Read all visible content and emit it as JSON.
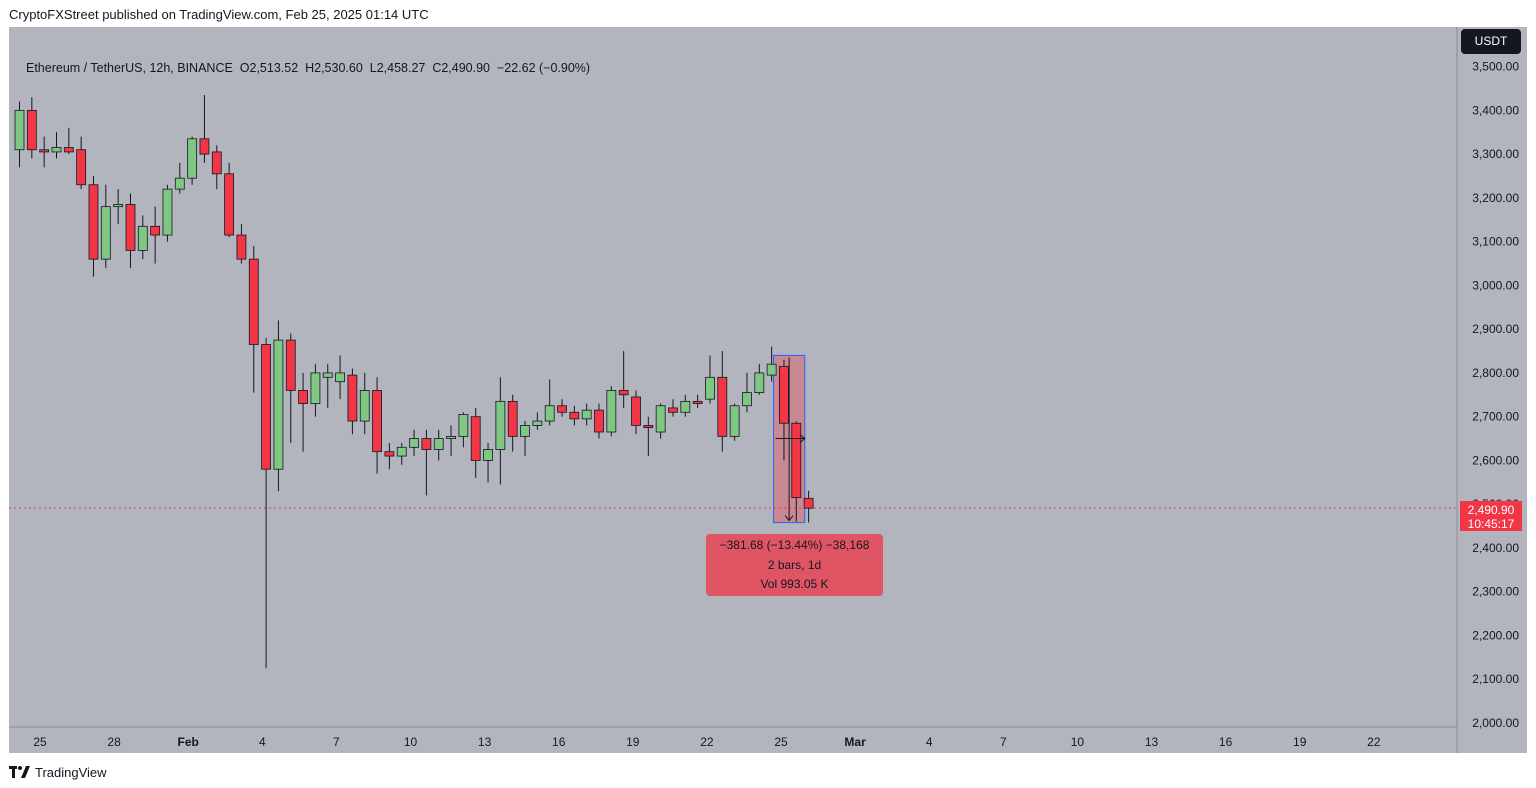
{
  "header": {
    "published_text": "CryptoFXStreet published on TradingView.com, Feb 25, 2025 01:14 UTC"
  },
  "legend": {
    "symbol_info": "Ethereum / TetherUS, 12h, BINANCE",
    "open": "O2,513.52",
    "high": "H2,530.60",
    "low": "L2,458.27",
    "close": "C2,490.90",
    "change": "−22.62 (−0.90%)"
  },
  "currency": "USDT",
  "last_price": {
    "price": "2,490.90",
    "countdown": "10:45:17"
  },
  "measure": {
    "change_line": "−381.68 (−13.44%) −38,168",
    "bars_line": "2 bars, 1d",
    "volume_line": "Vol 993.05 K"
  },
  "footer": {
    "brand": "TradingView"
  },
  "colors": {
    "background": "#b2b5be",
    "up": "#81c784",
    "down": "#f23645",
    "price_label": "#f23645",
    "measure_fill": "#e05563"
  },
  "chart_data": {
    "type": "candlestick",
    "title": "Ethereum / TetherUS, 12h, BINANCE",
    "x_tick_labels": [
      "25",
      "28",
      "Feb",
      "4",
      "7",
      "10",
      "13",
      "16",
      "19",
      "22",
      "25",
      "Mar",
      "4",
      "7",
      "10",
      "13",
      "16",
      "19",
      "22"
    ],
    "y_tick_labels": [
      "2,000.00",
      "2,100.00",
      "2,200.00",
      "2,300.00",
      "2,400.00",
      "2,500.00",
      "2,600.00",
      "2,700.00",
      "2,800.00",
      "2,900.00",
      "3,000.00",
      "3,100.00",
      "3,200.00",
      "3,300.00",
      "3,400.00",
      "3,500.00"
    ],
    "ylim": [
      2000,
      3550
    ],
    "candles": [
      {
        "o": 3310,
        "h": 3420,
        "l": 3270,
        "c": 3400
      },
      {
        "o": 3400,
        "h": 3430,
        "l": 3290,
        "c": 3310
      },
      {
        "o": 3310,
        "h": 3340,
        "l": 3270,
        "c": 3305
      },
      {
        "o": 3305,
        "h": 3350,
        "l": 3290,
        "c": 3315
      },
      {
        "o": 3315,
        "h": 3360,
        "l": 3300,
        "c": 3305
      },
      {
        "o": 3310,
        "h": 3340,
        "l": 3220,
        "c": 3230
      },
      {
        "o": 3230,
        "h": 3250,
        "l": 3020,
        "c": 3060
      },
      {
        "o": 3060,
        "h": 3230,
        "l": 3040,
        "c": 3180
      },
      {
        "o": 3180,
        "h": 3220,
        "l": 3140,
        "c": 3185
      },
      {
        "o": 3185,
        "h": 3210,
        "l": 3040,
        "c": 3080
      },
      {
        "o": 3080,
        "h": 3160,
        "l": 3060,
        "c": 3135
      },
      {
        "o": 3135,
        "h": 3180,
        "l": 3050,
        "c": 3115
      },
      {
        "o": 3115,
        "h": 3230,
        "l": 3100,
        "c": 3220
      },
      {
        "o": 3220,
        "h": 3280,
        "l": 3210,
        "c": 3245
      },
      {
        "o": 3245,
        "h": 3340,
        "l": 3230,
        "c": 3335
      },
      {
        "o": 3335,
        "h": 3435,
        "l": 3280,
        "c": 3300
      },
      {
        "o": 3305,
        "h": 3320,
        "l": 3220,
        "c": 3255
      },
      {
        "o": 3255,
        "h": 3280,
        "l": 3110,
        "c": 3115
      },
      {
        "o": 3115,
        "h": 3140,
        "l": 3050,
        "c": 3060
      },
      {
        "o": 3060,
        "h": 3090,
        "l": 2755,
        "c": 2865
      },
      {
        "o": 2865,
        "h": 2880,
        "l": 2125,
        "c": 2580
      },
      {
        "o": 2580,
        "h": 2920,
        "l": 2530,
        "c": 2875
      },
      {
        "o": 2875,
        "h": 2890,
        "l": 2640,
        "c": 2760
      },
      {
        "o": 2760,
        "h": 2800,
        "l": 2620,
        "c": 2730
      },
      {
        "o": 2730,
        "h": 2820,
        "l": 2700,
        "c": 2800
      },
      {
        "o": 2790,
        "h": 2820,
        "l": 2720,
        "c": 2800
      },
      {
        "o": 2780,
        "h": 2840,
        "l": 2740,
        "c": 2800
      },
      {
        "o": 2795,
        "h": 2810,
        "l": 2660,
        "c": 2690
      },
      {
        "o": 2690,
        "h": 2800,
        "l": 2660,
        "c": 2760
      },
      {
        "o": 2760,
        "h": 2790,
        "l": 2570,
        "c": 2620
      },
      {
        "o": 2620,
        "h": 2640,
        "l": 2580,
        "c": 2610
      },
      {
        "o": 2610,
        "h": 2640,
        "l": 2590,
        "c": 2630
      },
      {
        "o": 2630,
        "h": 2670,
        "l": 2610,
        "c": 2650
      },
      {
        "o": 2650,
        "h": 2670,
        "l": 2520,
        "c": 2625
      },
      {
        "o": 2625,
        "h": 2670,
        "l": 2600,
        "c": 2650
      },
      {
        "o": 2650,
        "h": 2680,
        "l": 2610,
        "c": 2655
      },
      {
        "o": 2655,
        "h": 2710,
        "l": 2630,
        "c": 2705
      },
      {
        "o": 2700,
        "h": 2720,
        "l": 2560,
        "c": 2600
      },
      {
        "o": 2600,
        "h": 2640,
        "l": 2550,
        "c": 2625
      },
      {
        "o": 2625,
        "h": 2790,
        "l": 2545,
        "c": 2735
      },
      {
        "o": 2735,
        "h": 2750,
        "l": 2620,
        "c": 2655
      },
      {
        "o": 2655,
        "h": 2690,
        "l": 2610,
        "c": 2680
      },
      {
        "o": 2680,
        "h": 2710,
        "l": 2670,
        "c": 2690
      },
      {
        "o": 2690,
        "h": 2785,
        "l": 2680,
        "c": 2725
      },
      {
        "o": 2725,
        "h": 2740,
        "l": 2700,
        "c": 2710
      },
      {
        "o": 2710,
        "h": 2725,
        "l": 2680,
        "c": 2695
      },
      {
        "o": 2695,
        "h": 2730,
        "l": 2680,
        "c": 2715
      },
      {
        "o": 2715,
        "h": 2730,
        "l": 2650,
        "c": 2665
      },
      {
        "o": 2665,
        "h": 2770,
        "l": 2655,
        "c": 2760
      },
      {
        "o": 2760,
        "h": 2850,
        "l": 2720,
        "c": 2750
      },
      {
        "o": 2745,
        "h": 2760,
        "l": 2660,
        "c": 2680
      },
      {
        "o": 2680,
        "h": 2700,
        "l": 2610,
        "c": 2675
      },
      {
        "o": 2665,
        "h": 2730,
        "l": 2650,
        "c": 2725
      },
      {
        "o": 2720,
        "h": 2740,
        "l": 2700,
        "c": 2710
      },
      {
        "o": 2710,
        "h": 2750,
        "l": 2700,
        "c": 2735
      },
      {
        "o": 2735,
        "h": 2750,
        "l": 2720,
        "c": 2730
      },
      {
        "o": 2740,
        "h": 2840,
        "l": 2730,
        "c": 2790
      },
      {
        "o": 2790,
        "h": 2850,
        "l": 2620,
        "c": 2655
      },
      {
        "o": 2655,
        "h": 2730,
        "l": 2645,
        "c": 2725
      },
      {
        "o": 2725,
        "h": 2800,
        "l": 2710,
        "c": 2755
      },
      {
        "o": 2755,
        "h": 2820,
        "l": 2750,
        "c": 2800
      },
      {
        "o": 2795,
        "h": 2860,
        "l": 2780,
        "c": 2820
      },
      {
        "o": 2815,
        "h": 2830,
        "l": 2600,
        "c": 2685
      },
      {
        "o": 2685,
        "h": 2690,
        "l": 2460,
        "c": 2515
      },
      {
        "o": 2513.52,
        "h": 2530.6,
        "l": 2458.27,
        "c": 2490.9
      }
    ],
    "last_close": 2490.9,
    "measure_range": {
      "from": 2840,
      "to": 2458
    }
  }
}
